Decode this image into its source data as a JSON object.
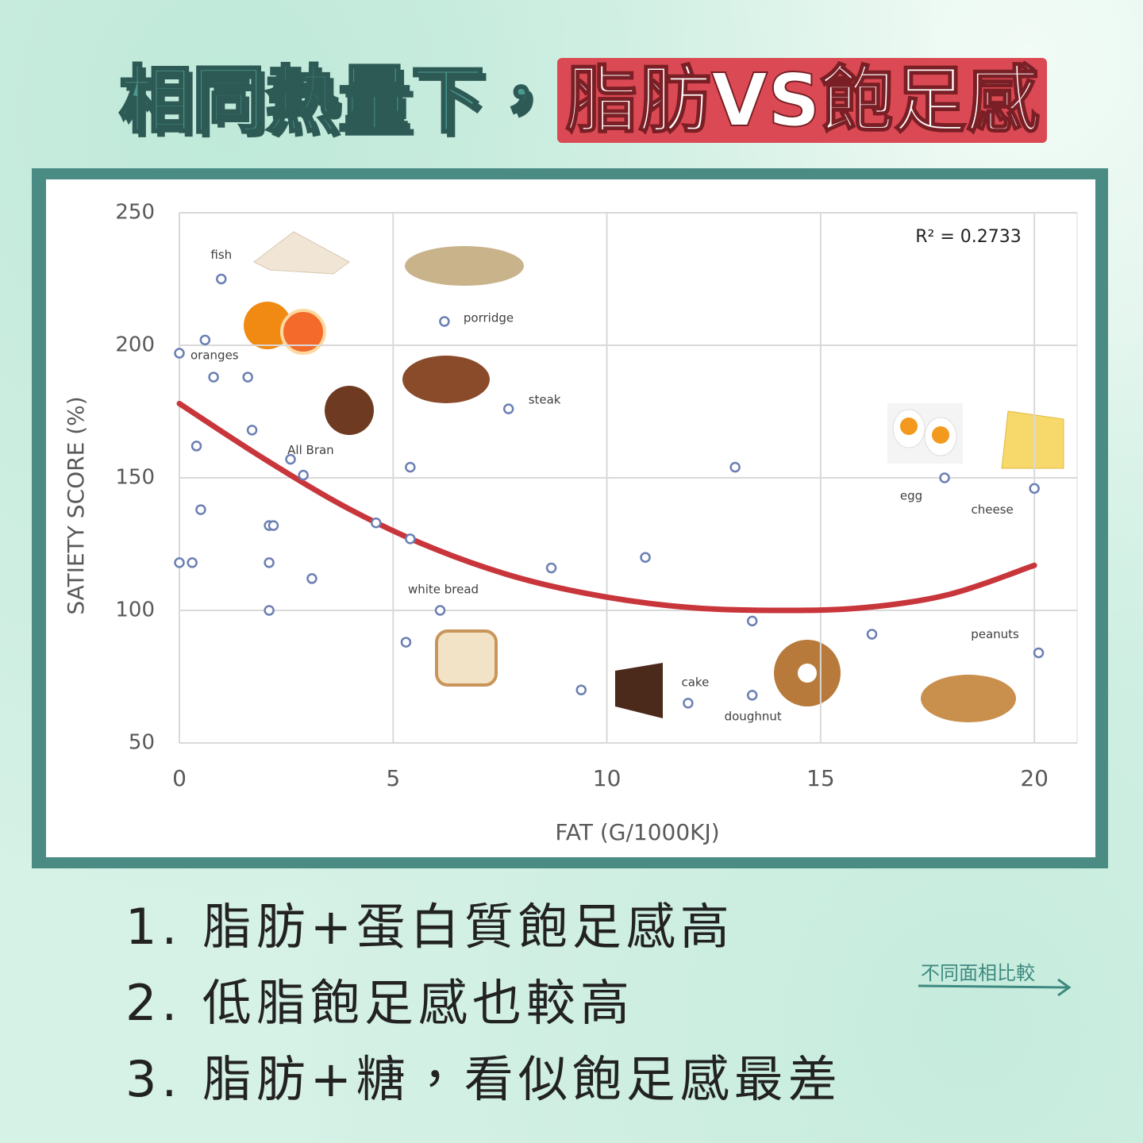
{
  "header": {
    "title_main": "相同熱量下，",
    "title_highlight": "脂肪VS飽足感"
  },
  "chart_data": {
    "type": "scatter",
    "xlabel": "FAT (G/1000KJ)",
    "ylabel": "SATIETY SCORE (%)",
    "xlim": [
      0,
      21
    ],
    "xticks": [
      0,
      5,
      10,
      15,
      20
    ],
    "ylim": [
      50,
      250
    ],
    "yticks": [
      50,
      100,
      150,
      200,
      250
    ],
    "grid": true,
    "color": "#6b7fb3",
    "x": [
      0.98,
      0,
      0.6,
      0.8,
      1.6,
      1.7,
      0.4,
      2.6,
      2.9,
      0.5,
      2.1,
      2.2,
      0,
      0.3,
      2.1,
      3.1,
      2.1,
      6.2,
      7.7,
      5.4,
      4.6,
      5.4,
      8.7,
      6.1,
      5.3,
      9.4,
      10.9,
      11.9,
      13.0,
      13.4,
      13.4,
      16.2,
      17.9,
      20.0,
      20.1
    ],
    "values": [
      225,
      197,
      202,
      188,
      188,
      168,
      162,
      157,
      151,
      138,
      132,
      132,
      118,
      118,
      118,
      112,
      100,
      209,
      176,
      154,
      133,
      127,
      116,
      100,
      88,
      70,
      120,
      65,
      154,
      96,
      68,
      91,
      150,
      146,
      84
    ],
    "point_labels": [
      "fish",
      "oranges",
      null,
      null,
      null,
      null,
      null,
      null,
      "All Bran",
      null,
      null,
      null,
      null,
      null,
      null,
      null,
      null,
      "porridge",
      "steak",
      null,
      null,
      null,
      null,
      "white bread",
      null,
      null,
      null,
      "cake",
      null,
      null,
      "doughnut",
      null,
      "egg",
      "cheese",
      "peanuts"
    ],
    "trendline": {
      "color": "#c8363b",
      "x": [
        0,
        2,
        4,
        6,
        8,
        10,
        12,
        14,
        16,
        18,
        20
      ],
      "values": [
        178,
        157,
        138,
        123,
        112,
        105,
        101,
        100,
        101,
        106,
        117
      ]
    },
    "annotation": "R² = 0.2733"
  },
  "notes": {
    "items": [
      "1. 脂肪+蛋白質飽足感高",
      "2. 低脂飽足感也較高",
      "3. 脂肪+糖，看似飽足感最差"
    ],
    "link": "不同面相比較"
  }
}
